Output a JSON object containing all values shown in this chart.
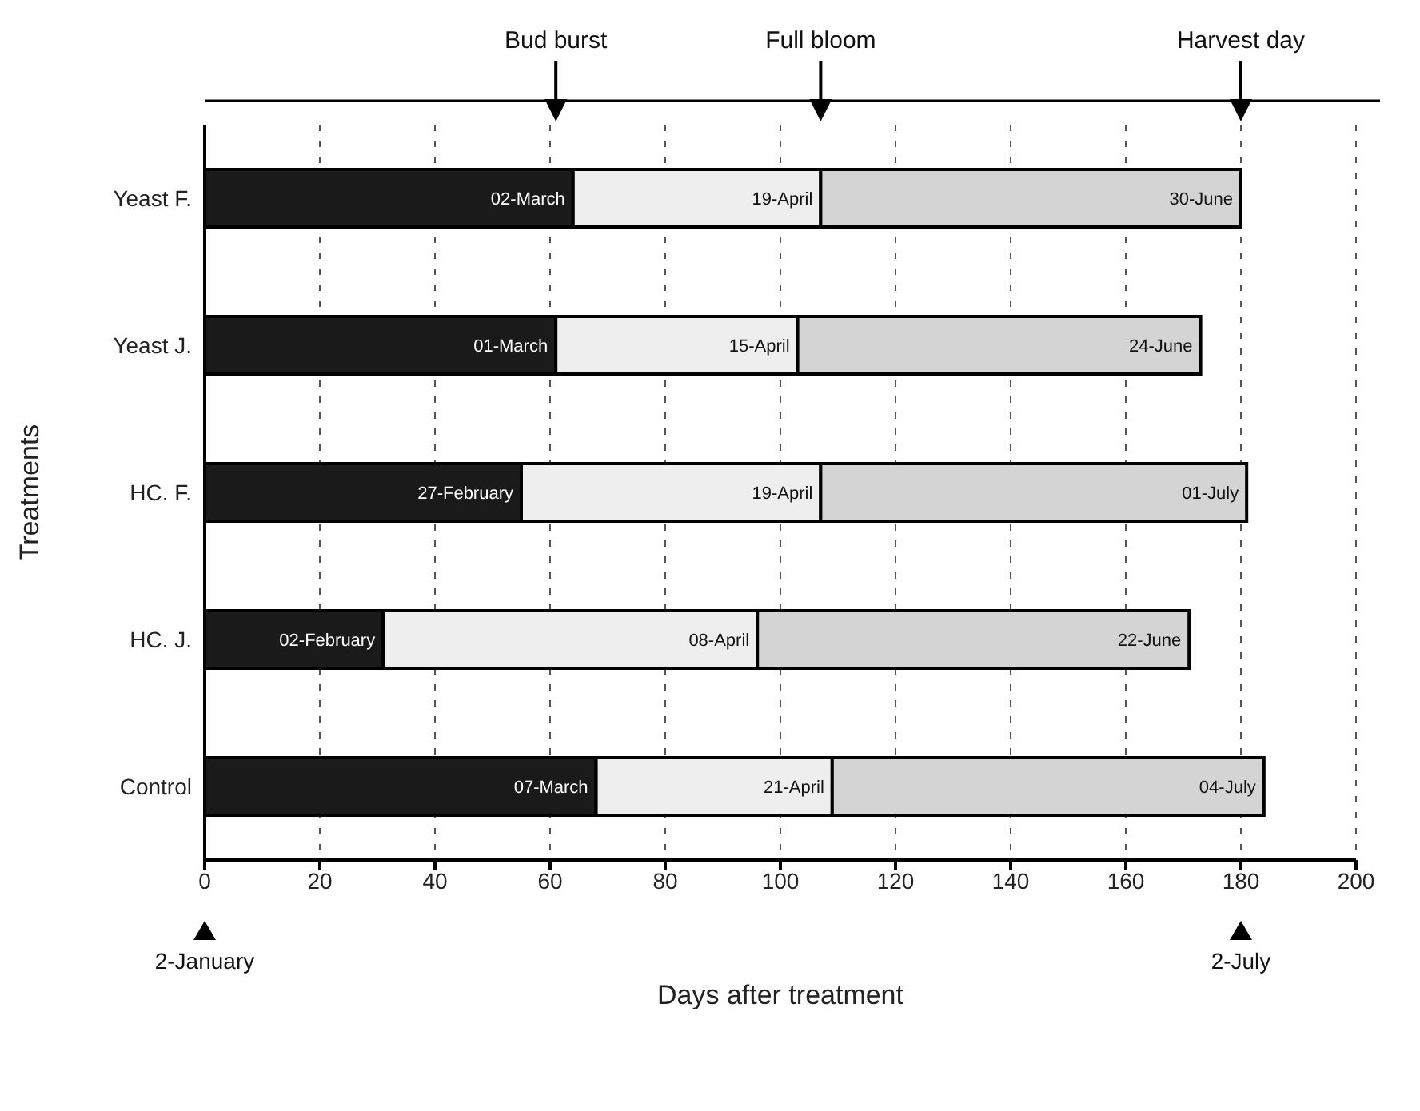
{
  "chart_data": {
    "type": "bar",
    "orientation": "horizontal",
    "stacked": true,
    "xlabel": "Days after treatment",
    "ylabel": "Treatments",
    "categories": [
      "Yeast F.",
      "Yeast J.",
      "HC. F.",
      "HC. J.",
      "Control"
    ],
    "series": [
      {
        "color": "#1a1a1a",
        "values": [
          64,
          61,
          55,
          31,
          68
        ],
        "value_labels": [
          "02-March",
          "01-March",
          "27-February",
          "02-February",
          "07-March"
        ]
      },
      {
        "color": "#eeeeee",
        "values": [
          43,
          42,
          52,
          65,
          41
        ],
        "value_labels": [
          "19-April",
          "15-April",
          "19-April",
          "08-April",
          "21-April"
        ]
      },
      {
        "color": "#d4d4d4",
        "values": [
          73,
          70,
          74,
          75,
          75
        ],
        "value_labels": [
          "30-June",
          "24-June",
          "01-July",
          "22-June",
          "04-July"
        ]
      }
    ],
    "xlim": [
      0,
      200
    ],
    "xticks": [
      0,
      20,
      40,
      60,
      80,
      100,
      120,
      140,
      160,
      180,
      200
    ],
    "grid": "x",
    "annotations": [
      "Bud burst",
      "Full bloom",
      "Harvest day",
      "2-January",
      "2-July"
    ]
  }
}
